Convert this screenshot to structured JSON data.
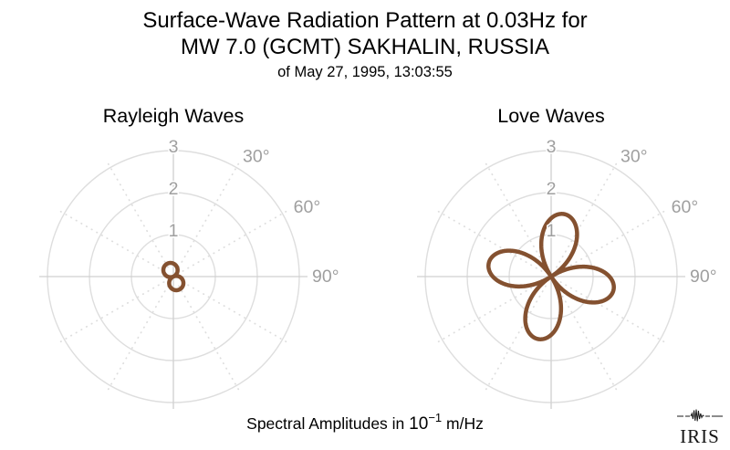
{
  "header": {
    "title_line1": "Surface-Wave Radiation Pattern at 0.03Hz for",
    "title_line2": "MW 7.0 (GCMT) SAKHALIN, RUSSIA",
    "subtitle": "of May 27, 1995, 13:03:55"
  },
  "caption": {
    "prefix": "Spectral Amplitudes in",
    "base": "10",
    "exponent": "−1",
    "suffix": "m/Hz"
  },
  "logo": {
    "text": "IRIS"
  },
  "colors": {
    "pattern": "#845130",
    "grid": "#dedede",
    "axis": "#d0d0d0",
    "tick_label": "#9f9f9f",
    "title": "#000000"
  },
  "chart_data": [
    {
      "type": "polar",
      "title": "Rayleigh Waves",
      "r_ticks": [
        1,
        2,
        3
      ],
      "r_max": 3,
      "units": "10⁻¹ m/Hz",
      "spoke_step_deg": 30,
      "angle_ticks_deg": [
        30,
        60,
        90
      ],
      "angle_tick_labels": [
        "30°",
        "60°",
        "90°"
      ],
      "grid": "on",
      "series": [
        {
          "name": "Rayleigh-wave radiation pattern",
          "model": "r(θ) = A·|cos(θ − θ₀)|",
          "lobes": 2,
          "max_amplitude": 0.34,
          "lobe_azimuths_deg": [
            156,
            336
          ]
        }
      ]
    },
    {
      "type": "polar",
      "title": "Love Waves",
      "r_ticks": [
        1,
        2,
        3
      ],
      "r_max": 3,
      "units": "10⁻¹ m/Hz",
      "spoke_step_deg": 30,
      "angle_ticks_deg": [
        30,
        60,
        90
      ],
      "angle_tick_labels": [
        "30°",
        "60°",
        "90°"
      ],
      "grid": "on",
      "series": [
        {
          "name": "Love-wave radiation pattern",
          "model": "r(θ) = A·|cos(2(θ − θ₀))|",
          "lobes": 4,
          "max_amplitude": 1.52,
          "lobe_azimuths_deg": [
            12,
            102,
            192,
            282
          ]
        }
      ]
    }
  ]
}
